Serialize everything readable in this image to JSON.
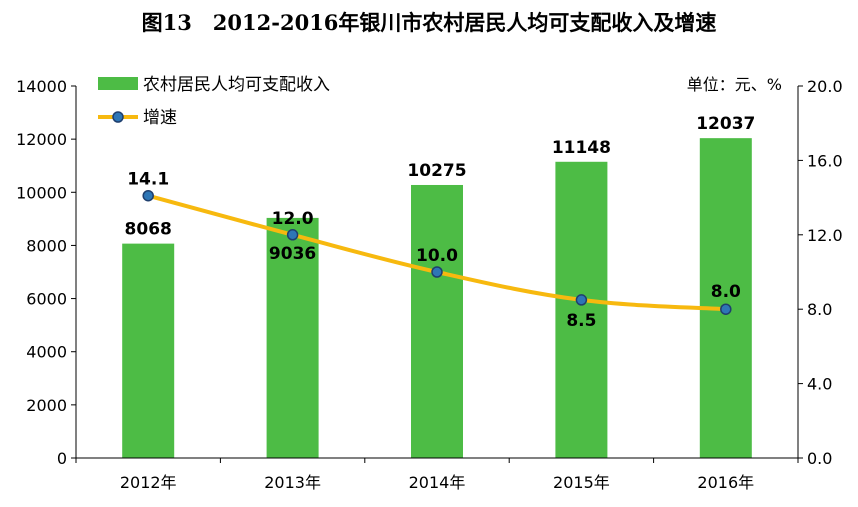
{
  "chart_data": {
    "type": "bar",
    "title": "图13　2012-2016年银川市农村居民人均可支配收入及增速",
    "unit_label": "单位：元、%",
    "categories": [
      "2012年",
      "2013年",
      "2014年",
      "2015年",
      "2016年"
    ],
    "series": [
      {
        "name": "农村居民人均可支配收入",
        "type": "bar",
        "axis": "left",
        "values": [
          8068,
          9036,
          10275,
          11148,
          12037
        ],
        "labels": [
          "8068",
          "9036",
          "10275",
          "11148",
          "12037"
        ]
      },
      {
        "name": "增速",
        "type": "line",
        "axis": "right",
        "values": [
          14.1,
          12.0,
          10.0,
          8.5,
          8.0
        ],
        "labels": [
          "14.1",
          "12.0",
          "10.0",
          "8.5",
          "8.0"
        ]
      }
    ],
    "y_left": {
      "min": 0,
      "max": 14000,
      "ticks": [
        "0",
        "2000",
        "4000",
        "6000",
        "8000",
        "10000",
        "12000",
        "14000"
      ]
    },
    "y_right": {
      "min": 0,
      "max": 20,
      "ticks": [
        "0.0",
        "4.0",
        "8.0",
        "12.0",
        "16.0",
        "20.0"
      ]
    },
    "legend": "top-left",
    "grid": false,
    "colors": {
      "bar": "#4dbc45",
      "line": "#f7b90f",
      "marker_fill": "#2e76b6",
      "marker_edge": "#1f3f6e",
      "axis": "#000000"
    }
  }
}
